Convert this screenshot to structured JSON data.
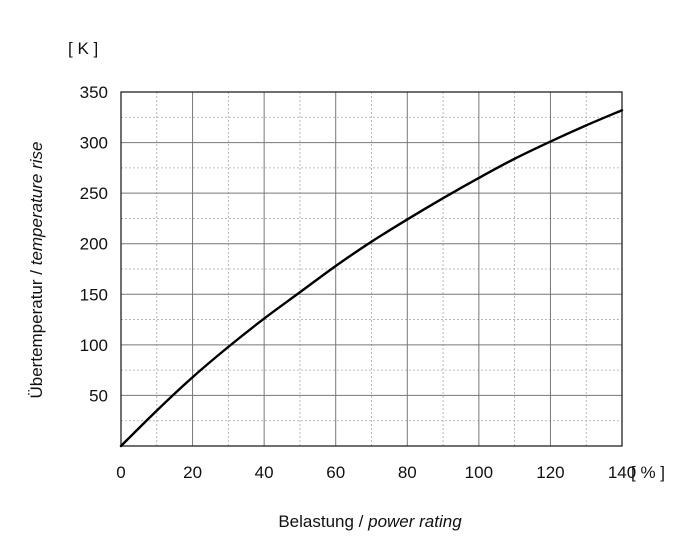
{
  "chart_data": {
    "type": "line",
    "title": "",
    "xlabel": {
      "plain": "Belastung / ",
      "italic": "power rating"
    },
    "ylabel": {
      "plain": "Übertemperatur / ",
      "italic": "temperature rise"
    },
    "x_unit": "[ % ]",
    "y_unit": "[ K ]",
    "xlim": [
      0,
      140
    ],
    "ylim": [
      0,
      350
    ],
    "x_ticks": [
      0,
      20,
      40,
      60,
      80,
      100,
      120,
      140
    ],
    "y_ticks": [
      50,
      100,
      150,
      200,
      250,
      300,
      350
    ],
    "grid": true,
    "series": [
      {
        "x": [
          0,
          10,
          20,
          30,
          40,
          50,
          60,
          70,
          80,
          90,
          100,
          110,
          120,
          130,
          140
        ],
        "y": [
          0,
          35,
          68,
          98,
          126,
          152,
          178,
          202,
          224,
          245,
          265,
          284,
          301,
          317,
          332
        ]
      }
    ]
  }
}
